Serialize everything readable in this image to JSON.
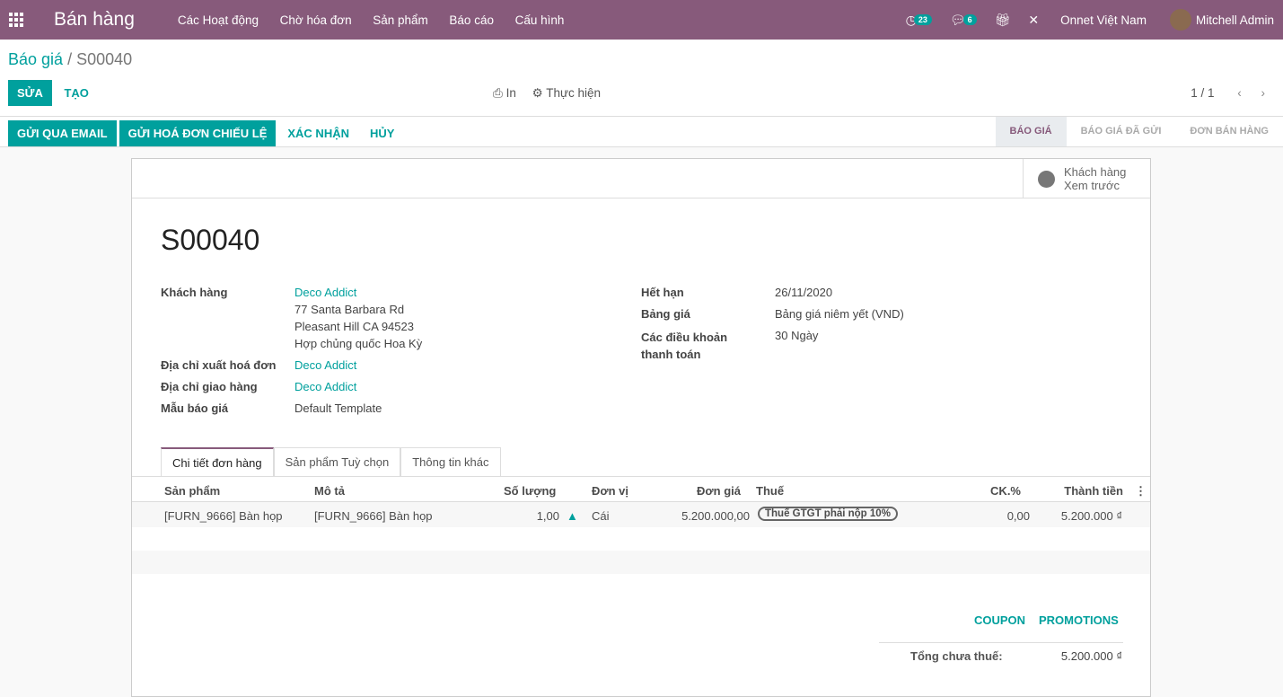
{
  "nav": {
    "app": "Bán hàng",
    "menu": [
      "Các Hoạt động",
      "Chờ hóa đơn",
      "Sản phẩm",
      "Báo cáo",
      "Cấu hình"
    ],
    "activity_count": "23",
    "message_count": "6",
    "company": "Onnet Việt Nam",
    "user": "Mitchell Admin"
  },
  "breadcrumb": {
    "parent": "Báo giá",
    "sep": "/",
    "current": "S00040"
  },
  "toolbar": {
    "edit": "SỬA",
    "create": "TẠO",
    "print": "In",
    "action": "Thực hiện",
    "pager": "1 / 1"
  },
  "status_buttons": [
    "GỬI QUA EMAIL",
    "GỬI HOÁ ĐƠN CHIẾU LỆ",
    "XÁC NHẬN",
    "HỦY"
  ],
  "stages": [
    "BÁO GIÁ",
    "BÁO GIÁ ĐÃ GỬI",
    "ĐƠN BÁN HÀNG"
  ],
  "preview": {
    "line1": "Khách hàng",
    "line2": "Xem trước"
  },
  "form": {
    "name": "S00040",
    "customer_label": "Khách hàng",
    "customer": "Deco Addict",
    "addr1": "77 Santa Barbara Rd",
    "addr2": "Pleasant Hill CA 94523",
    "addr3": "Hợp chủng quốc Hoa Kỳ",
    "invoice_label": "Địa chỉ xuất hoá đơn",
    "invoice": "Deco Addict",
    "delivery_label": "Địa chỉ giao hàng",
    "delivery": "Deco Addict",
    "template_label": "Mẫu báo giá",
    "template": "Default Template",
    "expiry_label": "Hết hạn",
    "expiry": "26/11/2020",
    "pricelist_label": "Bảng giá",
    "pricelist": "Bảng giá niêm yết (VND)",
    "terms_label": "Các điều khoản thanh toán",
    "terms": "30 Ngày"
  },
  "tabs": [
    "Chi tiết đơn hàng",
    "Sản phẩm Tuỳ chọn",
    "Thông tin khác"
  ],
  "table": {
    "headers": [
      "Sản phẩm",
      "Mô tả",
      "Số lượng",
      "Đơn vị",
      "Đơn giá",
      "Thuế",
      "CK.%",
      "Thành tiền"
    ],
    "rows": [
      {
        "product": "[FURN_9666] Bàn họp",
        "desc": "[FURN_9666] Bàn họp",
        "qty": "1,00",
        "uom": "Cái",
        "price": "5.200.000,00",
        "tax": "Thuế GTGT phải nộp 10%",
        "disc": "0,00",
        "subtotal": "5.200.000 ₫"
      }
    ]
  },
  "footer": {
    "coupon": "COUPON",
    "promotions": "PROMOTIONS",
    "untaxed_label": "Tổng chưa thuế:",
    "untaxed": "5.200.000 ₫"
  },
  "colors": {
    "brand": "#875a7b",
    "accent": "#00a09d"
  }
}
